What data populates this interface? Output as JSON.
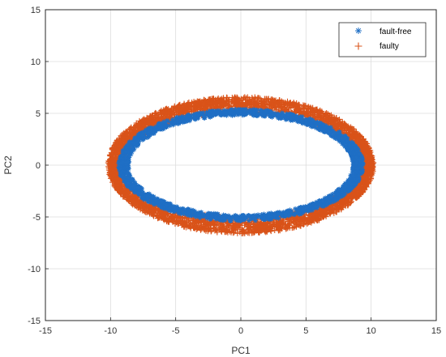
{
  "chart_data": {
    "type": "scatter",
    "xlabel": "PC1",
    "ylabel": "PC2",
    "xlim": [
      -15,
      15
    ],
    "ylim": [
      -15,
      15
    ],
    "xticks": [
      "-15",
      "-10",
      "-5",
      "0",
      "5",
      "10",
      "15"
    ],
    "yticks": [
      "-15",
      "-10",
      "-5",
      "0",
      "5",
      "10",
      "15"
    ],
    "grid": true,
    "legend_position": "top-right",
    "series": [
      {
        "name": "fault-free",
        "marker": "asterisk",
        "color": "#1f6fc5",
        "shape": "ellipse",
        "center": [
          0,
          0
        ],
        "semi_axis_x_range": [
          8.6,
          9.4
        ],
        "semi_axis_y_range": [
          4.8,
          5.4
        ]
      },
      {
        "name": "faulty",
        "marker": "plus",
        "color": "#d95319",
        "shape": "ellipse",
        "center": [
          0,
          0
        ],
        "semi_axis_x_range": [
          9.0,
          10.2
        ],
        "semi_axis_y_range": [
          5.0,
          6.6
        ]
      }
    ]
  }
}
